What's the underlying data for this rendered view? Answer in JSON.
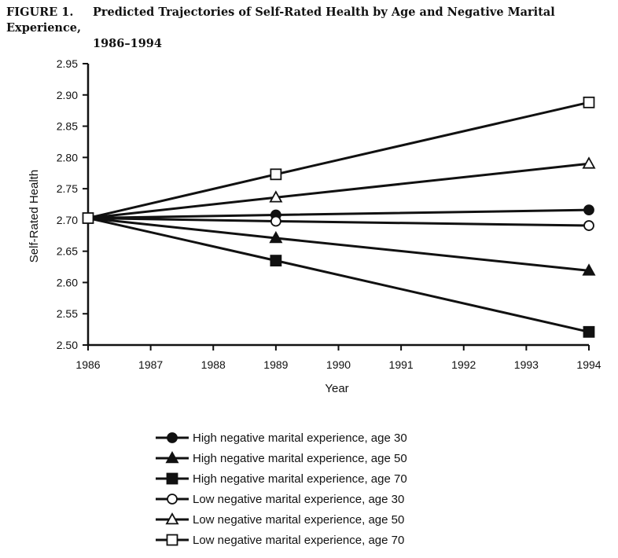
{
  "figure": {
    "number": "FIGURE 1.",
    "title_line1": "Predicted Trajectories of Self-Rated Health by Age and Negative Marital Experience,",
    "title_line2": "1986–1994"
  },
  "chart_data": {
    "type": "line",
    "title": "Predicted Trajectories of Self-Rated Health by Age and Negative Marital Experience, 1986–1994",
    "xlabel": "Year",
    "ylabel": "Self-Rated Health",
    "xlim": [
      1986,
      1994
    ],
    "ylim": [
      2.5,
      2.95
    ],
    "xticks": [
      "1986",
      "1987",
      "1988",
      "1989",
      "1990",
      "1991",
      "1992",
      "1993",
      "1994"
    ],
    "yticks": [
      "2.95",
      "2.90",
      "2.85",
      "2.80",
      "2.75",
      "2.70",
      "2.65",
      "2.60",
      "2.55",
      "2.50"
    ],
    "x": [
      1986,
      1989,
      1994
    ],
    "grid": false,
    "legend_position": "bottom",
    "series": [
      {
        "name": "High negative marital experience, age 30",
        "marker": "circle",
        "fill": "filled",
        "values": [
          2.703,
          2.708,
          2.716
        ]
      },
      {
        "name": "High negative marital experience, age 50",
        "marker": "triangle",
        "fill": "filled",
        "values": [
          2.703,
          2.671,
          2.619
        ]
      },
      {
        "name": "High negative marital experience, age 70",
        "marker": "square",
        "fill": "filled",
        "values": [
          2.703,
          2.635,
          2.521
        ]
      },
      {
        "name": "Low negative marital experience, age 30",
        "marker": "circle",
        "fill": "open",
        "values": [
          2.703,
          2.698,
          2.691
        ]
      },
      {
        "name": "Low negative marital experience, age 50",
        "marker": "triangle",
        "fill": "open",
        "values": [
          2.703,
          2.736,
          2.79
        ]
      },
      {
        "name": "Low negative marital experience, age 70",
        "marker": "square",
        "fill": "open",
        "values": [
          2.703,
          2.773,
          2.888
        ]
      }
    ]
  }
}
